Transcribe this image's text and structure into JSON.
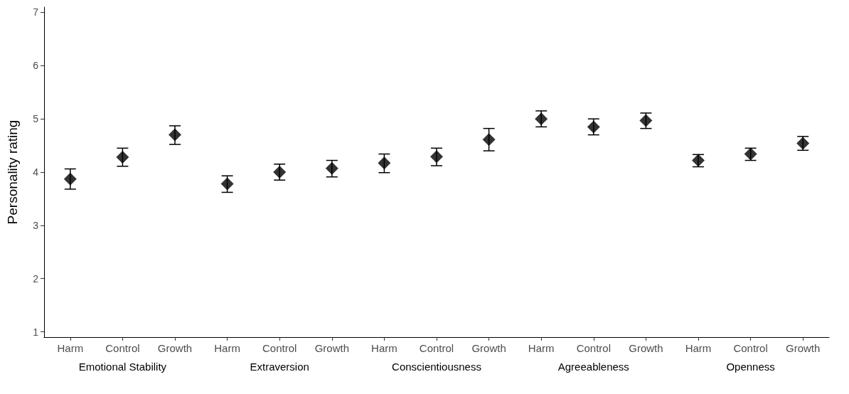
{
  "chart_data": {
    "type": "scatter",
    "ylabel": "Personality rating",
    "categories": [
      "Harm",
      "Control",
      "Growth",
      "Harm",
      "Control",
      "Growth",
      "Harm",
      "Control",
      "Growth",
      "Harm",
      "Control",
      "Growth",
      "Harm",
      "Control",
      "Growth"
    ],
    "values": [
      3.87,
      4.28,
      4.7,
      3.78,
      4.0,
      4.07,
      4.17,
      4.29,
      4.61,
      5.0,
      4.85,
      4.97,
      4.22,
      4.34,
      4.54
    ],
    "errors": [
      [
        3.68,
        4.06
      ],
      [
        4.11,
        4.45
      ],
      [
        4.52,
        4.87
      ],
      [
        3.62,
        3.93
      ],
      [
        3.85,
        4.15
      ],
      [
        3.91,
        4.22
      ],
      [
        3.99,
        4.34
      ],
      [
        4.12,
        4.45
      ],
      [
        4.4,
        4.82
      ],
      [
        4.85,
        5.15
      ],
      [
        4.7,
        5.0
      ],
      [
        4.82,
        5.11
      ],
      [
        4.1,
        4.33
      ],
      [
        4.22,
        4.45
      ],
      [
        4.41,
        4.67
      ]
    ],
    "color": "#000000",
    "marker": "diamond",
    "ylim": [
      0.9,
      7.1
    ],
    "yticks": [
      1,
      2,
      3,
      4,
      5,
      6,
      7
    ],
    "grid": false,
    "annotations": [
      "Emotional Stability",
      "Extraversion",
      "Conscientiousness",
      "Agreeableness",
      "Openness"
    ]
  }
}
